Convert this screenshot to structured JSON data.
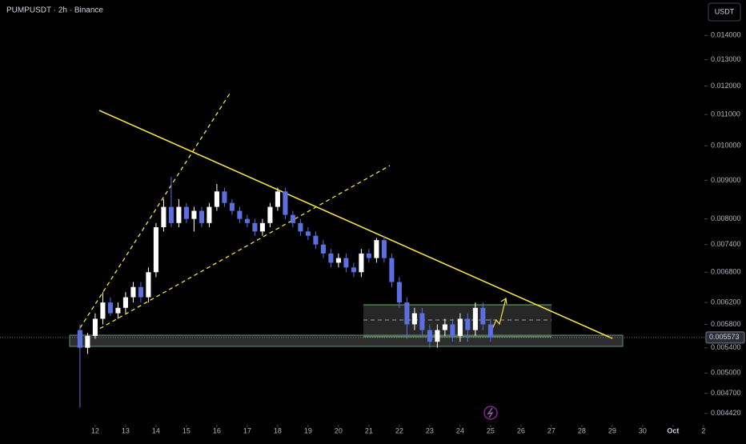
{
  "chart_data": {
    "type": "candlestick",
    "title": "PUMPUSDT · 2h · Binance",
    "currency": "USDT",
    "log_scale": true,
    "up_color": "#ffffff",
    "down_color": "#5b6fe0",
    "last_price": 0.005573,
    "last_price_label": "0.005573",
    "xlim": [
      8.87,
      32.03
    ],
    "xticks": [
      12,
      13,
      14,
      15,
      16,
      17,
      18,
      19,
      20,
      21,
      22,
      23,
      24,
      25,
      26,
      27,
      28,
      29,
      30,
      {
        "value": 31,
        "label": "Oct"
      },
      {
        "value": 32,
        "label": "2"
      }
    ],
    "ylim": [
      0.00428,
      0.0156
    ],
    "yticks": [
      {
        "value": 0.00442,
        "label": "0.004420"
      },
      {
        "value": 0.0047,
        "label": "0.004700"
      },
      {
        "value": 0.005,
        "label": "0.005000"
      },
      {
        "value": 0.0054,
        "label": "0.005400"
      },
      {
        "value": 0.0058,
        "label": "0.005800"
      },
      {
        "value": 0.0062,
        "label": "0.006200"
      },
      {
        "value": 0.0068,
        "label": "0.006800"
      },
      {
        "value": 0.0074,
        "label": "0.007400"
      },
      {
        "value": 0.008,
        "label": "0.008000"
      },
      {
        "value": 0.009,
        "label": "0.009000"
      },
      {
        "value": 0.01,
        "label": "0.010000"
      },
      {
        "value": 0.011,
        "label": "0.011000"
      },
      {
        "value": 0.012,
        "label": "0.012000"
      },
      {
        "value": 0.013,
        "label": "0.013000"
      },
      {
        "value": 0.014,
        "label": "0.014000"
      }
    ],
    "x": [
      11.5,
      11.75,
      12,
      12.25,
      12.5,
      12.75,
      13,
      13.25,
      13.5,
      13.75,
      14,
      14.25,
      14.5,
      14.75,
      15,
      15.25,
      15.5,
      15.75,
      16,
      16.25,
      16.5,
      16.75,
      17,
      17.25,
      17.5,
      17.75,
      18,
      18.25,
      18.5,
      18.75,
      19,
      19.25,
      19.5,
      19.75,
      20,
      20.25,
      20.5,
      20.75,
      21,
      21.25,
      21.5,
      21.75,
      22,
      22.25,
      22.5,
      22.75,
      23,
      23.25,
      23.5,
      23.75,
      24,
      24.25,
      24.5,
      24.75,
      25
    ],
    "open": [
      0.0057,
      0.0054,
      0.0056,
      0.0059,
      0.0062,
      0.006,
      0.0061,
      0.0063,
      0.0065,
      0.0063,
      0.0068,
      0.0078,
      0.0083,
      0.0079,
      0.0083,
      0.008,
      0.0082,
      0.0079,
      0.0083,
      0.0087,
      0.0084,
      0.0082,
      0.008,
      0.0079,
      0.0077,
      0.0079,
      0.0083,
      0.0087,
      0.0081,
      0.0079,
      0.0077,
      0.0076,
      0.0074,
      0.0072,
      0.007,
      0.0071,
      0.0069,
      0.0068,
      0.0072,
      0.0071,
      0.0075,
      0.0071,
      0.0066,
      0.0062,
      0.0058,
      0.006,
      0.0057,
      0.0055,
      0.0057,
      0.0058,
      0.0056,
      0.0059,
      0.0057,
      0.0061,
      0.0058
    ],
    "high": [
      0.0058,
      0.00565,
      0.006,
      0.0064,
      0.0063,
      0.0062,
      0.0064,
      0.0066,
      0.0066,
      0.0069,
      0.0079,
      0.0085,
      0.0091,
      0.0085,
      0.0084,
      0.0083,
      0.0083,
      0.0084,
      0.0089,
      0.0088,
      0.0085,
      0.0083,
      0.0081,
      0.008,
      0.008,
      0.0084,
      0.0088,
      0.0088,
      0.0082,
      0.008,
      0.0078,
      0.0077,
      0.0075,
      0.0073,
      0.0072,
      0.0072,
      0.007,
      0.0073,
      0.0073,
      0.00755,
      0.0076,
      0.0072,
      0.0067,
      0.0063,
      0.0061,
      0.0061,
      0.0058,
      0.0058,
      0.0059,
      0.0059,
      0.006,
      0.006,
      0.0062,
      0.0062,
      0.0059
    ],
    "low": [
      0.0045,
      0.0053,
      0.00555,
      0.0058,
      0.00595,
      0.0059,
      0.006,
      0.0062,
      0.0062,
      0.0062,
      0.0067,
      0.0077,
      0.0078,
      0.0078,
      0.0079,
      0.0077,
      0.0078,
      0.0078,
      0.0082,
      0.0083,
      0.0081,
      0.0079,
      0.0078,
      0.0076,
      0.0076,
      0.0078,
      0.0082,
      0.008,
      0.0078,
      0.0076,
      0.0075,
      0.0073,
      0.0071,
      0.0069,
      0.0069,
      0.0068,
      0.0067,
      0.0067,
      0.007,
      0.007,
      0.007,
      0.0065,
      0.0061,
      0.00555,
      0.0057,
      0.0056,
      0.0054,
      0.0054,
      0.0056,
      0.0055,
      0.0055,
      0.0055,
      0.0056,
      0.0057,
      0.0055
    ],
    "close": [
      0.0054,
      0.0056,
      0.0059,
      0.0062,
      0.006,
      0.0061,
      0.0063,
      0.0065,
      0.0063,
      0.0068,
      0.0078,
      0.0083,
      0.0079,
      0.0083,
      0.008,
      0.0082,
      0.0079,
      0.0083,
      0.0087,
      0.0084,
      0.0082,
      0.008,
      0.0079,
      0.0077,
      0.0079,
      0.0083,
      0.0087,
      0.0081,
      0.0079,
      0.0077,
      0.0076,
      0.0074,
      0.0072,
      0.007,
      0.0071,
      0.0069,
      0.0068,
      0.0072,
      0.0071,
      0.0075,
      0.0071,
      0.0066,
      0.0062,
      0.0058,
      0.006,
      0.0057,
      0.0055,
      0.0057,
      0.0058,
      0.0056,
      0.0059,
      0.0057,
      0.0061,
      0.0058,
      0.005573
    ]
  }
}
